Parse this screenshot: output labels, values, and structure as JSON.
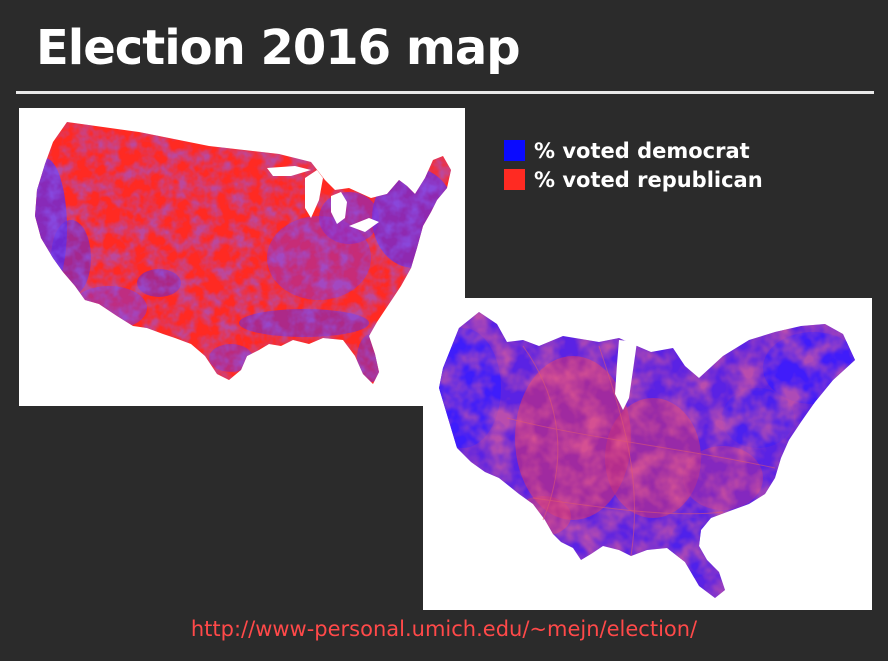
{
  "slide": {
    "title": "Election 2016 map",
    "source_url": "http://www-personal.umich.edu/~mejn/election/"
  },
  "legend": {
    "items": [
      {
        "label": "% voted democrat",
        "color": "#0a0aff"
      },
      {
        "label": "% voted republican",
        "color": "#ff2a22"
      }
    ]
  },
  "maps": {
    "geographic": {
      "map_type": "county-level choropleth (geographic)"
    },
    "cartogram": {
      "map_type": "county-level population cartogram"
    }
  },
  "colors": {
    "background": "#2b2b2b",
    "rule": "#e8e8e8",
    "url_text": "#ff4949",
    "republican_red": "#ff2a22",
    "democrat_blue": "#3a1cff",
    "mixed_purple": "#9b2fc4"
  }
}
